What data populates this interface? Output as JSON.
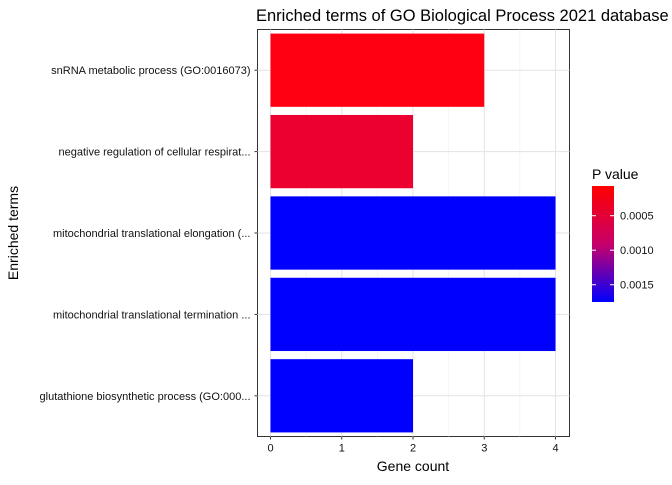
{
  "chart_data": {
    "type": "bar",
    "orientation": "horizontal",
    "title": "Enriched terms of GO Biological Process 2021 database",
    "xlabel": "Gene count",
    "ylabel": "Enriched terms",
    "xlim": [
      0,
      4.2
    ],
    "x_ticks": [
      0,
      1,
      2,
      3,
      4
    ],
    "grid": true,
    "categories": [
      "snRNA metabolic process (GO:0016073)",
      "negative regulation of cellular respirat...",
      "mitochondrial translational elongation (...",
      "mitochondrial translational termination ...",
      "glutathione biosynthetic process (GO:000..."
    ],
    "values": [
      3,
      2,
      4,
      4,
      2
    ],
    "p_values": [
      0.0001,
      0.0004,
      0.0017,
      0.0017,
      0.0017
    ],
    "bar_colors": [
      "#FF0012",
      "#EC0030",
      "#0000FF",
      "#0000FF",
      "#0000FF"
    ],
    "legend": {
      "title": "P value",
      "placement": "right",
      "ticks": [
        "0.0005",
        "0.0010",
        "0.0015"
      ],
      "tick_values": [
        0.0005,
        0.001,
        0.0015
      ],
      "range": [
        7e-05,
        0.00175
      ],
      "color_low": "#FF0000",
      "color_high": "#0000FF"
    }
  }
}
